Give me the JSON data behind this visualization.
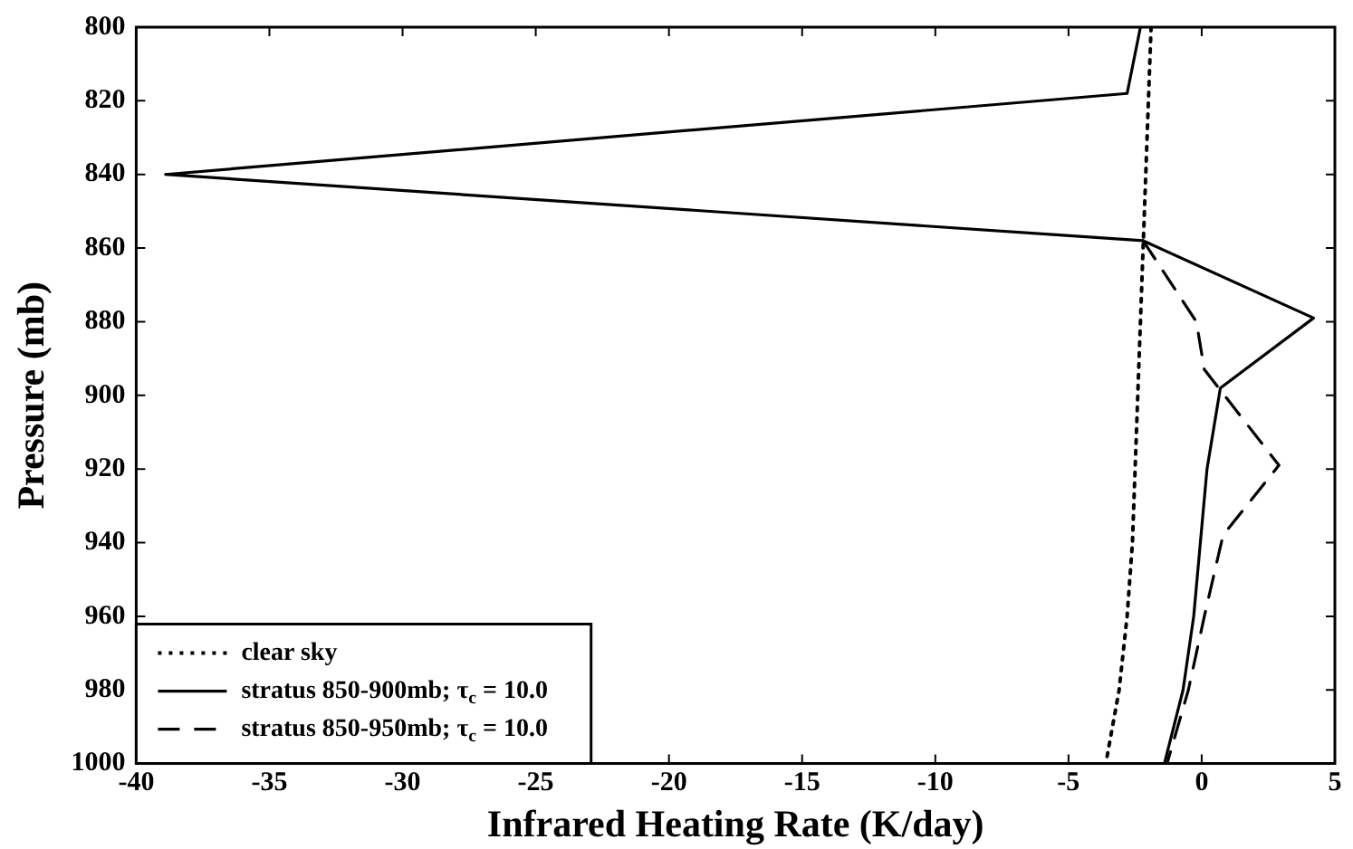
{
  "chart_data": {
    "type": "line",
    "orientation": "horizontal",
    "xlabel": "Infrared Heating Rate (K/day)",
    "ylabel": "Pressure (mb)",
    "xlim": [
      -40,
      5
    ],
    "xticks": [
      -40,
      -35,
      -30,
      -25,
      -20,
      -15,
      -10,
      -5,
      0,
      5
    ],
    "ylim": [
      1000,
      800
    ],
    "yticks": [
      800,
      820,
      840,
      860,
      880,
      900,
      920,
      940,
      960,
      980,
      1000
    ],
    "grid": false,
    "legend": "bottom left",
    "marker": "none",
    "series": [
      {
        "name": "clear sky",
        "color": "#000000",
        "line_style": "dotted",
        "x": [
          800,
          860,
          900,
          940,
          960,
          980,
          1000
        ],
        "values": [
          -1.9,
          -2.2,
          -2.4,
          -2.6,
          -2.8,
          -3.1,
          -3.6
        ]
      },
      {
        "name": "stratus 850-900mb; τ$_{c}$ = 10.0",
        "color": "#000000",
        "line_style": "solid",
        "x": [
          800,
          818,
          840,
          858,
          879,
          898,
          920,
          960,
          980,
          1000
        ],
        "values": [
          -2.3,
          -2.8,
          -38.9,
          -2.2,
          4.2,
          0.7,
          0.2,
          -0.3,
          -0.7,
          -1.4
        ]
      },
      {
        "name": "stratus 850-950mb; τ$_{c}$ = 10.0",
        "color": "#000000",
        "line_style": "dashed",
        "x": [
          858,
          880,
          893,
          919,
          938,
          960,
          980,
          1000
        ],
        "values": [
          -2.2,
          -0.2,
          0.1,
          2.9,
          0.8,
          0.1,
          -0.5,
          -1.3
        ]
      }
    ]
  }
}
